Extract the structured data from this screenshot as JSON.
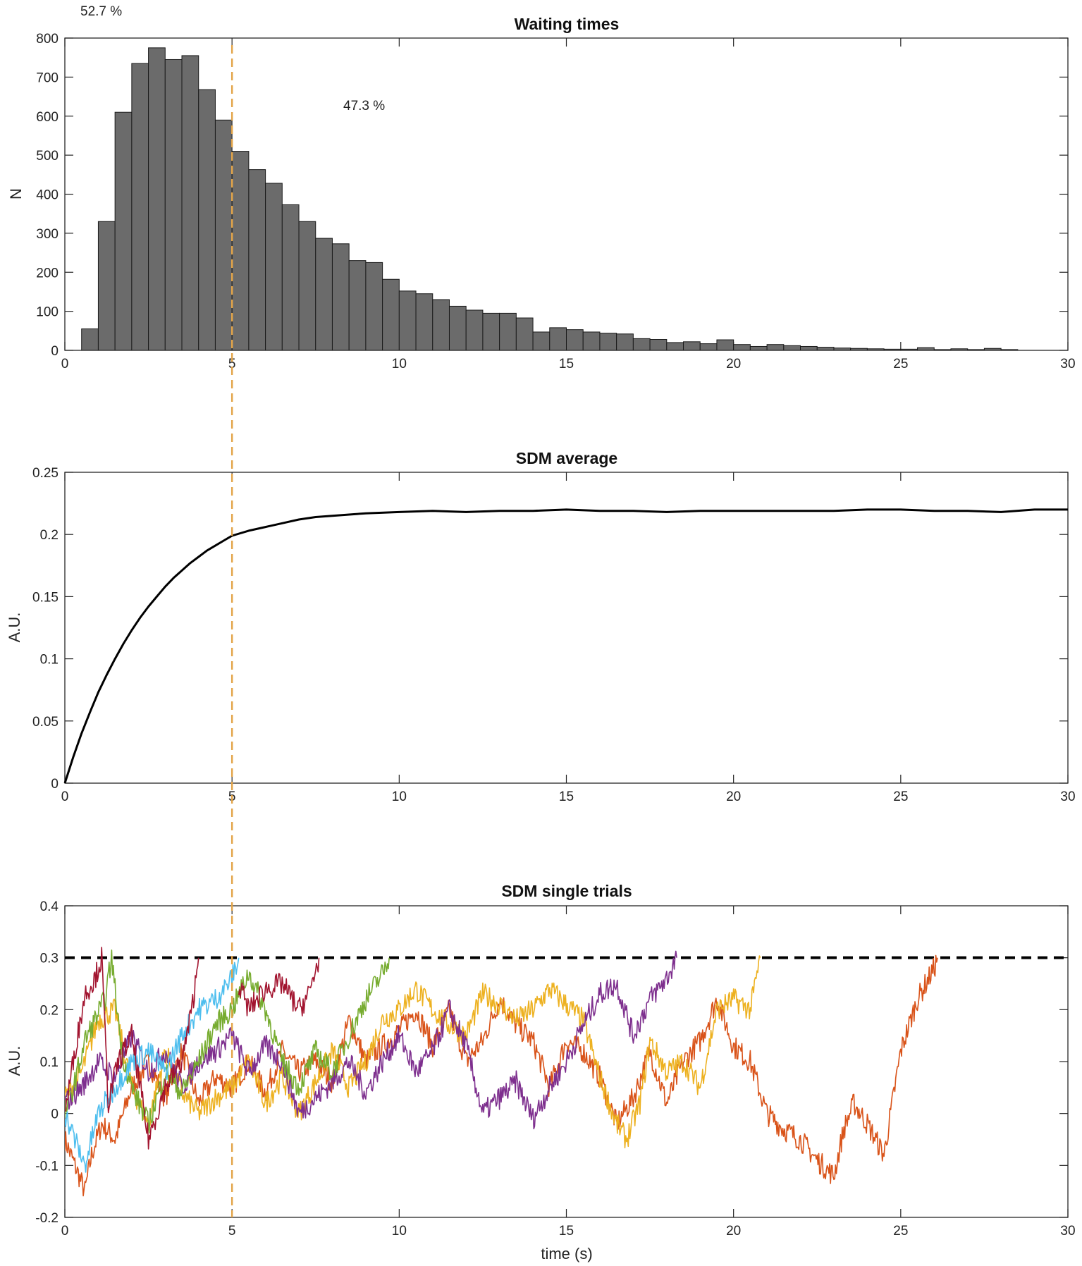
{
  "chart_data": [
    {
      "type": "bar",
      "title": "Waiting times",
      "xlabel": "",
      "ylabel": "N",
      "xlim": [
        0,
        30
      ],
      "ylim": [
        0,
        800
      ],
      "xticks": [
        "0",
        "5",
        "10",
        "15",
        "20",
        "25",
        "30"
      ],
      "yticks": [
        "0",
        "100",
        "200",
        "300",
        "400",
        "500",
        "600",
        "700",
        "800"
      ],
      "grid": false,
      "legend": "none",
      "bin_width": 0.5,
      "bin_starts": [
        0.5,
        1.0,
        1.5,
        2.0,
        2.5,
        3.0,
        3.5,
        4.0,
        4.5,
        5.0,
        5.5,
        6.0,
        6.5,
        7.0,
        7.5,
        8.0,
        8.5,
        9.0,
        9.5,
        10.0,
        10.5,
        11.0,
        11.5,
        12.0,
        12.5,
        13.0,
        13.5,
        14.0,
        14.5,
        15.0,
        15.5,
        16.0,
        16.5,
        17.0,
        17.5,
        18.0,
        18.5,
        19.0,
        19.5,
        20.0,
        20.5,
        21.0,
        21.5,
        22.0,
        22.5,
        23.0,
        23.5,
        24.0,
        24.5,
        25.0,
        25.5,
        26.0,
        26.5,
        27.0,
        27.5,
        28.0
      ],
      "values": [
        55,
        330,
        610,
        735,
        775,
        745,
        755,
        668,
        590,
        510,
        463,
        428,
        373,
        330,
        287,
        273,
        230,
        225,
        182,
        152,
        145,
        130,
        113,
        103,
        95,
        95,
        83,
        47,
        58,
        53,
        47,
        44,
        42,
        30,
        28,
        20,
        22,
        17,
        27,
        15,
        10,
        15,
        12,
        10,
        8,
        6,
        5,
        4,
        3,
        3,
        7,
        2,
        4,
        2,
        5,
        2
      ],
      "bar_color": "#6b6b6b",
      "annotations": [
        "52.7 %",
        "47.3 %"
      ],
      "cutoff_line_x": 5,
      "cutoff_line_color": "#e3a448"
    },
    {
      "type": "line",
      "title": "SDM average",
      "xlabel": "",
      "ylabel": "A.U.",
      "xlim": [
        0,
        30
      ],
      "ylim": [
        0,
        0.25
      ],
      "xticks": [
        "0",
        "5",
        "10",
        "15",
        "20",
        "25",
        "30"
      ],
      "yticks": [
        "0",
        "0.05",
        "0.1",
        "0.15",
        "0.2",
        "0.25"
      ],
      "grid": false,
      "legend": "none",
      "series": [
        {
          "color": "#000000",
          "x": [
            0,
            0.25,
            0.5,
            0.75,
            1.0,
            1.25,
            1.5,
            1.75,
            2.0,
            2.25,
            2.5,
            2.75,
            3.0,
            3.25,
            3.5,
            3.75,
            4.0,
            4.25,
            4.5,
            4.75,
            5.0,
            5.5,
            6.0,
            6.5,
            7.0,
            7.5,
            8.0,
            8.5,
            9.0,
            10,
            11,
            12,
            13,
            14,
            15,
            16,
            17,
            18,
            19,
            20,
            21,
            22,
            23,
            24,
            25,
            26,
            27,
            28,
            29,
            30
          ],
          "values": [
            0.0,
            0.021,
            0.04,
            0.057,
            0.073,
            0.087,
            0.1,
            0.112,
            0.123,
            0.133,
            0.142,
            0.15,
            0.158,
            0.165,
            0.171,
            0.177,
            0.182,
            0.187,
            0.191,
            0.195,
            0.199,
            0.203,
            0.206,
            0.209,
            0.212,
            0.214,
            0.215,
            0.216,
            0.217,
            0.218,
            0.219,
            0.218,
            0.219,
            0.219,
            0.22,
            0.219,
            0.219,
            0.218,
            0.219,
            0.219,
            0.219,
            0.219,
            0.219,
            0.22,
            0.22,
            0.219,
            0.219,
            0.218,
            0.22,
            0.22
          ]
        }
      ],
      "cutoff_line_x": 5,
      "cutoff_line_color": "#e3a448"
    },
    {
      "type": "line",
      "title": "SDM single trials",
      "xlabel": "time (s)",
      "ylabel": "A.U.",
      "xlim": [
        0,
        30
      ],
      "ylim": [
        -0.2,
        0.4
      ],
      "xticks": [
        "0",
        "5",
        "10",
        "15",
        "20",
        "25",
        "30"
      ],
      "yticks": [
        "-0.2",
        "-0.1",
        "0",
        "0.1",
        "0.2",
        "0.3",
        "0.4"
      ],
      "grid": false,
      "legend": "none",
      "threshold": 0.3,
      "threshold_color": "#000000",
      "cutoff_line_x": 5,
      "cutoff_line_color": "#e3a448",
      "series": [
        {
          "color": "#d95319",
          "x": [
            0,
            0.3,
            0.6,
            0.8,
            1.1,
            1.5,
            2.0,
            2.5,
            3.0,
            3.5,
            4.0,
            4.5,
            5.0,
            5.5,
            6.0,
            6.5,
            7.0,
            7.5,
            8.0,
            8.5,
            9.0,
            9.5,
            10.0,
            10.5,
            11.0,
            11.5,
            12.0,
            12.5,
            13.0,
            13.5,
            14.0,
            14.5,
            15.0,
            15.5,
            16.0,
            16.5,
            17.0,
            17.5,
            18.0,
            18.5,
            19.0,
            19.5,
            20.0,
            20.5,
            21.0,
            21.5,
            22.0,
            22.5,
            23.0,
            23.3,
            23.6,
            24.0,
            24.5,
            25.0,
            25.5,
            26.0,
            26.1
          ],
          "values": [
            -0.05,
            -0.1,
            -0.15,
            -0.08,
            -0.02,
            -0.05,
            0.05,
            0.1,
            0.03,
            0.12,
            0.02,
            0.07,
            0.05,
            0.1,
            0.04,
            0.12,
            0.08,
            0.1,
            0.06,
            0.18,
            0.1,
            0.13,
            0.16,
            0.2,
            0.13,
            0.2,
            0.1,
            0.14,
            0.22,
            0.17,
            0.14,
            0.05,
            0.14,
            0.12,
            0.07,
            -0.02,
            0.03,
            0.12,
            0.02,
            0.1,
            0.14,
            0.22,
            0.13,
            0.1,
            0.0,
            -0.03,
            -0.05,
            -0.09,
            -0.12,
            -0.03,
            0.02,
            -0.02,
            -0.08,
            0.12,
            0.22,
            0.28,
            0.3
          ]
        },
        {
          "color": "#edb120",
          "x": [
            0,
            0.5,
            1.0,
            1.5,
            2.0,
            2.5,
            3.0,
            3.5,
            4.0,
            4.5,
            5.0,
            5.5,
            6.0,
            6.5,
            7.0,
            7.5,
            8.0,
            8.5,
            9.0,
            9.5,
            10.0,
            10.5,
            11.0,
            11.5,
            12.0,
            12.5,
            13.0,
            13.5,
            14.0,
            14.5,
            15.0,
            15.5,
            16.0,
            16.5,
            16.8,
            17.2,
            17.5,
            18.0,
            18.5,
            19.0,
            19.5,
            20.0,
            20.5,
            20.8
          ],
          "values": [
            0.03,
            0.08,
            0.18,
            0.2,
            0.05,
            -0.02,
            0.12,
            0.04,
            0.0,
            0.03,
            0.05,
            0.1,
            0.02,
            0.07,
            0.0,
            0.06,
            0.12,
            0.05,
            0.1,
            0.18,
            0.2,
            0.24,
            0.2,
            0.17,
            0.15,
            0.23,
            0.21,
            0.18,
            0.2,
            0.24,
            0.21,
            0.18,
            0.07,
            -0.02,
            -0.05,
            0.02,
            0.14,
            0.08,
            0.1,
            0.05,
            0.2,
            0.22,
            0.2,
            0.3
          ]
        },
        {
          "color": "#7e2f8e",
          "x": [
            0,
            0.5,
            1.0,
            1.5,
            2.0,
            2.5,
            3.0,
            3.5,
            4.0,
            4.5,
            5.0,
            5.5,
            6.0,
            6.5,
            7.0,
            7.5,
            8.0,
            8.5,
            9.0,
            9.5,
            10.0,
            10.5,
            11.0,
            11.5,
            12.0,
            12.5,
            13.0,
            13.5,
            14.0,
            14.5,
            15.0,
            15.5,
            16.0,
            16.5,
            17.0,
            17.5,
            18.0,
            18.3
          ],
          "values": [
            0.02,
            0.05,
            0.1,
            0.07,
            0.15,
            0.08,
            0.12,
            0.05,
            0.1,
            0.12,
            0.15,
            0.08,
            0.13,
            0.1,
            0.0,
            0.03,
            0.06,
            0.1,
            0.04,
            0.1,
            0.15,
            0.08,
            0.12,
            0.2,
            0.13,
            0.0,
            0.03,
            0.06,
            -0.01,
            0.05,
            0.1,
            0.17,
            0.23,
            0.25,
            0.15,
            0.22,
            0.26,
            0.3
          ]
        },
        {
          "color": "#77ac30",
          "x": [
            0,
            0.3,
            0.6,
            0.9,
            1.2,
            1.4,
            1.7,
            2.0,
            2.5,
            3.0,
            3.5,
            4.0,
            4.5,
            5.0,
            5.5,
            6.0,
            6.5,
            7.0,
            7.5,
            8.0,
            8.5,
            9.0,
            9.5,
            9.7
          ],
          "values": [
            0.0,
            0.06,
            0.14,
            0.18,
            0.22,
            0.3,
            0.12,
            0.05,
            -0.02,
            0.08,
            0.04,
            0.1,
            0.17,
            0.2,
            0.27,
            0.2,
            0.1,
            0.05,
            0.12,
            0.08,
            0.15,
            0.22,
            0.27,
            0.3
          ]
        },
        {
          "color": "#4dbeee",
          "x": [
            0,
            0.3,
            0.6,
            1.0,
            1.5,
            2.0,
            2.5,
            3.0,
            3.5,
            4.0,
            4.5,
            5.0,
            5.2
          ],
          "values": [
            0.0,
            -0.05,
            -0.1,
            0.0,
            0.05,
            0.1,
            0.12,
            0.08,
            0.15,
            0.2,
            0.22,
            0.26,
            0.3
          ]
        },
        {
          "color": "#a2142f",
          "x": [
            0,
            0.3,
            0.6,
            0.9,
            1.1,
            1.3,
            1.6,
            2.0,
            2.5,
            3.0,
            3.5,
            3.8,
            4.0
          ],
          "values": [
            0.0,
            0.12,
            0.23,
            0.26,
            0.3,
            0.02,
            0.1,
            0.15,
            -0.05,
            0.05,
            0.1,
            0.2,
            0.3
          ]
        },
        {
          "color": "#a2142f",
          "x": [
            5.2,
            5.5,
            6.0,
            6.5,
            7.0,
            7.3,
            7.6
          ],
          "values": [
            0.25,
            0.2,
            0.24,
            0.25,
            0.2,
            0.23,
            0.3
          ]
        }
      ]
    }
  ]
}
